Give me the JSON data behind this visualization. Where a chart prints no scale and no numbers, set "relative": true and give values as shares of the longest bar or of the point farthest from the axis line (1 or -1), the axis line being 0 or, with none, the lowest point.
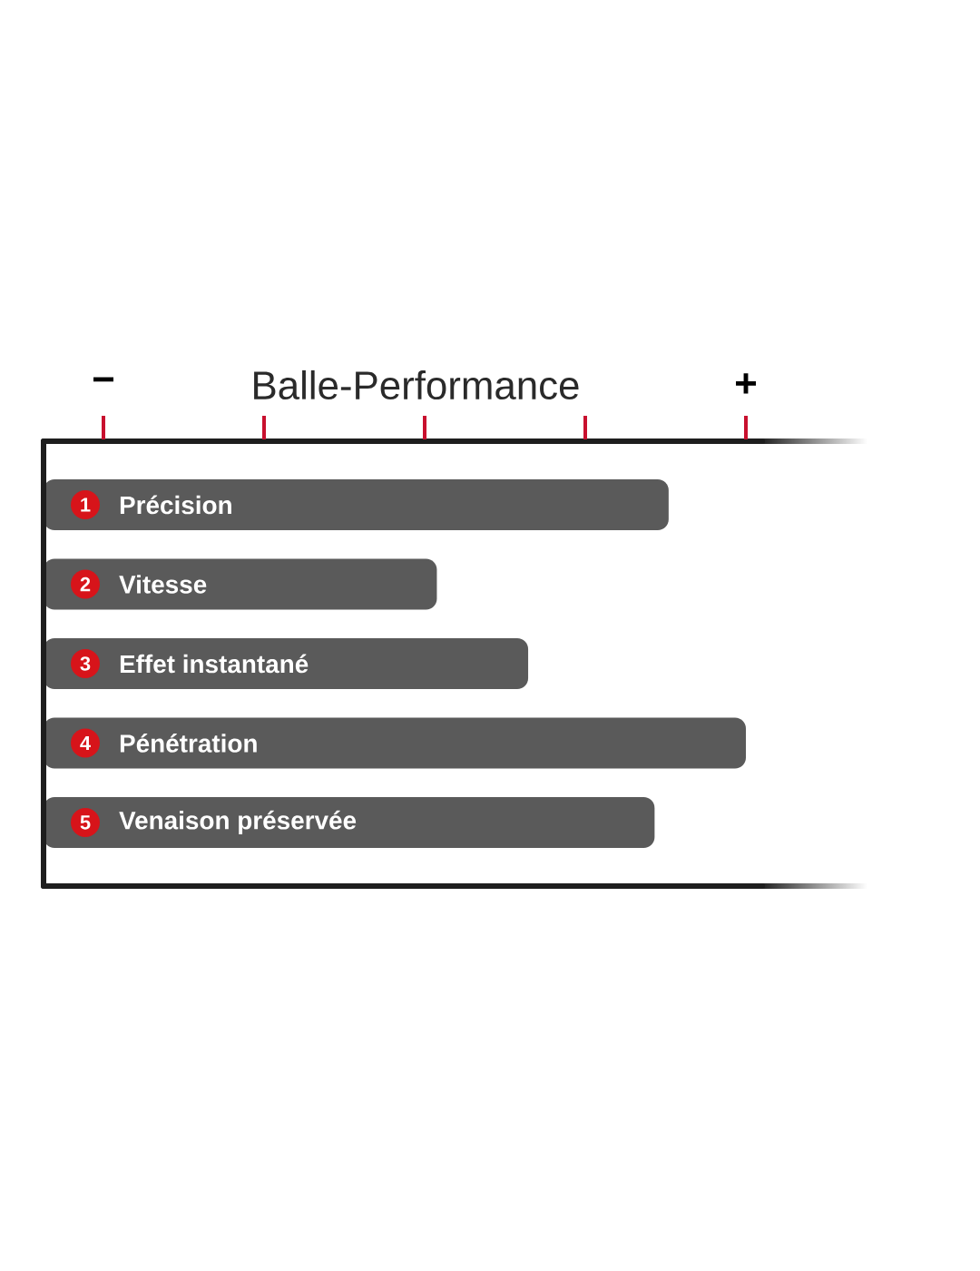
{
  "chart_data": {
    "type": "bar",
    "orientation": "horizontal",
    "relative": true,
    "title": "Balle-Performance",
    "categories": [
      "Précision",
      "Vitesse",
      "Effet instantané",
      "Pénétration",
      "Venaison préservée"
    ],
    "values": [
      0.89,
      0.56,
      0.69,
      1,
      0.87
    ],
    "color": "#5a5a5a",
    "annotations": [
      "−",
      "+",
      {
        "text": "1",
        "y": "Précision"
      },
      {
        "text": "2",
        "y": "Vitesse"
      },
      {
        "text": "3",
        "y": "Effet instantané"
      },
      {
        "text": "4",
        "y": "Pénétration"
      },
      {
        "text": "5",
        "y": "Venaison préservée"
      }
    ]
  }
}
